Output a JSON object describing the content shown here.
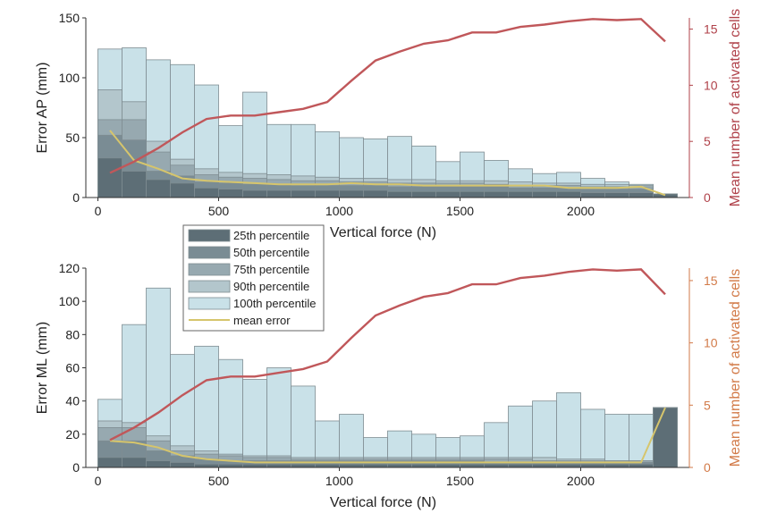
{
  "colors": {
    "p25": "#5d6e76",
    "p50": "#7a8c94",
    "p75": "#97a9b0",
    "p90": "#b3c6cc",
    "p100": "#c9e1e8",
    "bar_edge": "#7f8d92",
    "mean_error": "#d6c56c",
    "cells_line": "#c0575a",
    "right_axis_top": "#b0424a",
    "right_axis_bottom": "#d27a48",
    "axis": "#333333"
  },
  "legend": {
    "items": [
      {
        "key": "p25",
        "label": "25th percentile"
      },
      {
        "key": "p50",
        "label": "50th percentile"
      },
      {
        "key": "p75",
        "label": "75th percentile"
      },
      {
        "key": "p90",
        "label": "90th percentile"
      },
      {
        "key": "p100",
        "label": "100th percentile"
      },
      {
        "key": "mean_error",
        "label": "mean error"
      }
    ]
  },
  "chart_data": [
    {
      "type": "bar",
      "xlabel": "Vertical force (N)",
      "ylabel": "Error AP (mm)",
      "y2label": "Mean number of activated cells",
      "xlim": [
        -50,
        2450
      ],
      "ylim": [
        0,
        150
      ],
      "y2lim": [
        0,
        16
      ],
      "xticks": [
        0,
        500,
        1000,
        1500,
        2000
      ],
      "yticks": [
        0,
        50,
        100,
        150
      ],
      "y2ticks": [
        0,
        5,
        10,
        15
      ],
      "bin_starts": [
        0,
        100,
        200,
        300,
        400,
        500,
        600,
        700,
        800,
        900,
        1000,
        1100,
        1200,
        1300,
        1400,
        1500,
        1600,
        1700,
        1800,
        1900,
        2000,
        2100,
        2200,
        2300
      ],
      "bin_width": 100,
      "series": [
        {
          "key": "p100",
          "values": [
            124,
            125,
            115,
            111,
            94,
            60,
            88,
            61,
            61,
            55,
            50,
            49,
            51,
            43,
            30,
            38,
            31,
            24,
            20,
            21,
            16,
            13,
            11,
            3
          ]
        },
        {
          "key": "p90",
          "values": [
            90,
            80,
            47,
            32,
            24,
            21,
            20,
            19,
            18,
            17,
            16,
            16,
            15,
            15,
            14,
            14,
            14,
            13,
            12,
            12,
            11,
            11,
            10,
            3
          ]
        },
        {
          "key": "p75",
          "values": [
            65,
            65,
            38,
            27,
            19,
            17,
            16,
            15,
            14,
            14,
            13,
            13,
            12,
            12,
            12,
            12,
            11,
            10,
            10,
            10,
            9,
            9,
            9,
            3
          ]
        },
        {
          "key": "p50",
          "values": [
            52,
            48,
            22,
            18,
            13,
            12,
            11,
            11,
            10,
            10,
            10,
            10,
            9,
            9,
            9,
            9,
            9,
            8,
            8,
            8,
            7,
            7,
            7,
            3
          ]
        },
        {
          "key": "p25",
          "values": [
            33,
            22,
            15,
            12,
            8,
            7,
            6,
            6,
            6,
            6,
            6,
            6,
            5,
            5,
            5,
            5,
            5,
            5,
            5,
            5,
            4,
            4,
            4,
            3
          ]
        }
      ],
      "mean_error": {
        "x": [
          50,
          150,
          250,
          350,
          450,
          550,
          650,
          750,
          850,
          950,
          1050,
          1150,
          1250,
          1350,
          1450,
          1550,
          1650,
          1750,
          1850,
          1950,
          2050,
          2150,
          2250,
          2350
        ],
        "y": [
          56,
          31,
          24,
          16,
          14,
          13,
          12,
          11,
          11,
          11,
          12,
          11,
          11,
          10,
          10,
          10,
          10,
          10,
          10,
          8,
          8,
          8,
          9,
          2
        ]
      },
      "activated_cells": {
        "x": [
          50,
          150,
          250,
          350,
          450,
          550,
          650,
          750,
          850,
          950,
          1050,
          1150,
          1250,
          1350,
          1450,
          1550,
          1650,
          1750,
          1850,
          1950,
          2050,
          2150,
          2250,
          2350
        ],
        "y": [
          2.2,
          3.2,
          4.4,
          5.8,
          7.0,
          7.3,
          7.3,
          7.6,
          7.9,
          8.5,
          10.4,
          12.2,
          13.0,
          13.7,
          14.0,
          14.7,
          14.7,
          15.2,
          15.4,
          15.7,
          15.9,
          15.8,
          15.9,
          13.9
        ]
      }
    },
    {
      "type": "bar",
      "xlabel": "Vertical force (N)",
      "ylabel": "Error ML (mm)",
      "y2label": "Mean number of activated cells",
      "xlim": [
        -50,
        2450
      ],
      "ylim": [
        0,
        120
      ],
      "y2lim": [
        0,
        16
      ],
      "xticks": [
        0,
        500,
        1000,
        1500,
        2000
      ],
      "yticks": [
        0,
        20,
        40,
        60,
        80,
        100,
        120
      ],
      "y2ticks": [
        0,
        5,
        10,
        15
      ],
      "bin_starts": [
        0,
        100,
        200,
        300,
        400,
        500,
        600,
        700,
        800,
        900,
        1000,
        1100,
        1200,
        1300,
        1400,
        1500,
        1600,
        1700,
        1800,
        1900,
        2000,
        2100,
        2200,
        2300
      ],
      "bin_width": 100,
      "series": [
        {
          "key": "p100",
          "values": [
            41,
            86,
            108,
            68,
            73,
            65,
            53,
            60,
            49,
            28,
            32,
            18,
            22,
            20,
            18,
            19,
            27,
            37,
            40,
            45,
            35,
            32,
            32,
            36
          ]
        },
        {
          "key": "p90",
          "values": [
            28,
            27,
            19,
            13,
            10,
            8,
            7,
            7,
            6,
            6,
            6,
            6,
            6,
            6,
            6,
            6,
            6,
            6,
            6,
            5,
            5,
            4,
            4,
            36
          ]
        },
        {
          "key": "p75",
          "values": [
            24,
            24,
            16,
            10,
            8,
            7,
            6,
            6,
            5,
            5,
            5,
            5,
            5,
            5,
            5,
            5,
            5,
            5,
            4,
            4,
            4,
            4,
            4,
            36
          ]
        },
        {
          "key": "p50",
          "values": [
            16,
            16,
            10,
            7,
            5,
            4,
            4,
            4,
            4,
            4,
            4,
            4,
            4,
            4,
            4,
            4,
            3,
            3,
            3,
            3,
            3,
            3,
            3,
            36
          ]
        },
        {
          "key": "p25",
          "values": [
            6,
            6,
            4,
            3,
            2,
            2,
            2,
            2,
            2,
            2,
            2,
            2,
            2,
            2,
            2,
            2,
            2,
            2,
            2,
            2,
            2,
            2,
            2,
            36
          ]
        }
      ],
      "mean_error": {
        "x": [
          50,
          150,
          250,
          350,
          450,
          550,
          650,
          750,
          850,
          950,
          1050,
          1150,
          1250,
          1350,
          1450,
          1550,
          1650,
          1750,
          1850,
          1950,
          2050,
          2150,
          2250,
          2350
        ],
        "y": [
          16,
          15,
          12,
          7,
          5,
          4,
          3,
          3,
          3,
          3,
          3,
          3,
          3,
          3,
          3,
          3,
          3,
          3,
          3,
          3,
          3,
          3,
          3,
          36
        ]
      },
      "activated_cells": {
        "x": [
          50,
          150,
          250,
          350,
          450,
          550,
          650,
          750,
          850,
          950,
          1050,
          1150,
          1250,
          1350,
          1450,
          1550,
          1650,
          1750,
          1850,
          1950,
          2050,
          2150,
          2250,
          2350
        ],
        "y": [
          2.2,
          3.2,
          4.4,
          5.8,
          7.0,
          7.3,
          7.3,
          7.6,
          7.9,
          8.5,
          10.4,
          12.2,
          13.0,
          13.7,
          14.0,
          14.7,
          14.7,
          15.2,
          15.4,
          15.7,
          15.9,
          15.8,
          15.9,
          13.9
        ]
      }
    }
  ]
}
